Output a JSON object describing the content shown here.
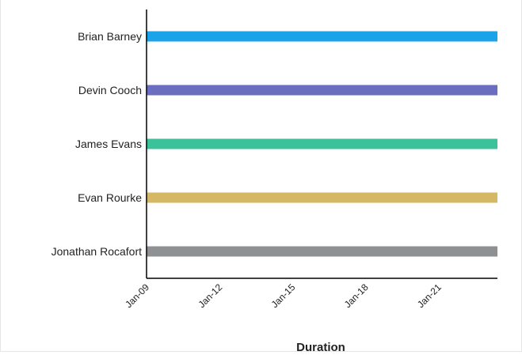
{
  "chart_data": {
    "type": "bar",
    "orientation": "horizontal",
    "title": "",
    "xlabel": "Duration",
    "ylabel": "",
    "x_axis": "date",
    "xlim": [
      "2009-01",
      "2023-06"
    ],
    "x_ticks": [
      "Jan-09",
      "Jan-12",
      "Jan-15",
      "Jan-18",
      "Jan-21"
    ],
    "categories": [
      "Brian Barney",
      "Devin Cooch",
      "James Evans",
      "Evan Rourke",
      "Jonathan Rocafort"
    ],
    "bars": [
      {
        "category": "Brian Barney",
        "start": "2009-01",
        "end": "2023-06",
        "color": "#1aa3e8"
      },
      {
        "category": "Devin Cooch",
        "start": "2009-01",
        "end": "2023-06",
        "color": "#6b6ebf"
      },
      {
        "category": "James Evans",
        "start": "2009-01",
        "end": "2023-06",
        "color": "#3cc29a"
      },
      {
        "category": "Evan Rourke",
        "start": "2009-01",
        "end": "2023-06",
        "color": "#d4b866"
      },
      {
        "category": "Jonathan Rocafort",
        "start": "2009-01",
        "end": "2023-06",
        "color": "#8e9094"
      }
    ],
    "grid": false,
    "legend": "none"
  }
}
